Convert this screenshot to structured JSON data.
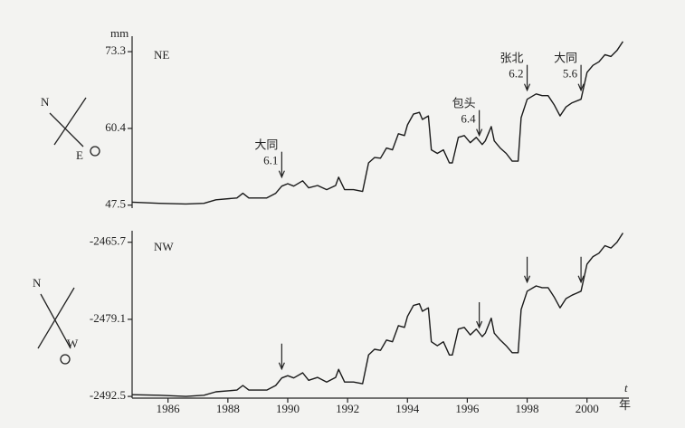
{
  "chart_data": [
    {
      "type": "line",
      "panel_label": "NE",
      "y_unit": "mm",
      "xlim": [
        1984.8,
        2001.4
      ],
      "ylim": [
        47.0,
        75.9
      ],
      "yticks": [
        47.5,
        60.4,
        73.3
      ],
      "color": "#1a1a1a",
      "x": [
        1984.8,
        1985.7,
        1986.6,
        1987.2,
        1987.6,
        1988.3,
        1988.5,
        1988.7,
        1989.3,
        1989.6,
        1989.8,
        1990.0,
        1990.2,
        1990.5,
        1990.7,
        1991.0,
        1991.3,
        1991.6,
        1991.7,
        1991.9,
        1992.2,
        1992.5,
        1992.6,
        1992.7,
        1992.9,
        1993.1,
        1993.3,
        1993.5,
        1993.7,
        1993.9,
        1994.0,
        1994.2,
        1994.4,
        1994.5,
        1994.7,
        1994.8,
        1995.0,
        1995.2,
        1995.4,
        1995.5,
        1995.7,
        1995.9,
        1996.1,
        1996.3,
        1996.5,
        1996.6,
        1996.8,
        1996.9,
        1997.1,
        1997.3,
        1997.5,
        1997.7,
        1997.8,
        1998.0,
        1998.3,
        1998.5,
        1998.7,
        1998.9,
        1999.1,
        1999.3,
        1999.5,
        1999.8,
        2000.0,
        2000.2,
        2000.4,
        2000.6,
        2000.8,
        2001.0,
        2001.2
      ],
      "values": [
        48.0,
        47.8,
        47.7,
        47.8,
        48.4,
        48.7,
        49.5,
        48.7,
        48.7,
        49.5,
        50.7,
        51.1,
        50.7,
        51.6,
        50.4,
        50.8,
        50.1,
        50.8,
        52.2,
        50.1,
        50.1,
        49.8,
        52.2,
        54.6,
        55.5,
        55.4,
        57.1,
        56.8,
        59.5,
        59.2,
        61.0,
        62.8,
        63.1,
        61.9,
        62.5,
        56.8,
        56.2,
        56.8,
        54.6,
        54.6,
        58.9,
        59.2,
        58.0,
        58.9,
        57.7,
        58.3,
        60.7,
        58.3,
        57.1,
        56.2,
        54.9,
        54.9,
        62.2,
        65.3,
        66.2,
        65.9,
        65.9,
        64.4,
        62.5,
        64.0,
        64.7,
        65.3,
        69.8,
        71.0,
        71.6,
        72.8,
        72.5,
        73.5,
        75.0
      ],
      "annotations": [
        {
          "label": "大同",
          "value": 6.1,
          "x": 1989.8
        },
        {
          "label": "包头",
          "value": 6.4,
          "x": 1996.4
        },
        {
          "label": "张北",
          "value": 6.2,
          "x": 1998.0
        },
        {
          "label": "大同",
          "value": 5.6,
          "x": 1999.8
        }
      ],
      "compass": [
        "N",
        "E"
      ]
    },
    {
      "type": "line",
      "panel_label": "NW",
      "xlim": [
        1984.8,
        2001.4
      ],
      "ylim": [
        -2492.8,
        -2463.7
      ],
      "yticks": [
        -2465.7,
        -2479.1,
        -2492.5
      ],
      "color": "#1a1a1a",
      "xticks": [
        1986,
        1988,
        1990,
        1992,
        1994,
        1996,
        1998,
        2000
      ],
      "x_symbol": "t",
      "x_label": "年",
      "x": [
        1984.8,
        1985.7,
        1986.6,
        1987.2,
        1987.6,
        1988.3,
        1988.5,
        1988.7,
        1989.3,
        1989.6,
        1989.8,
        1990.0,
        1990.2,
        1990.5,
        1990.7,
        1991.0,
        1991.3,
        1991.6,
        1991.7,
        1991.9,
        1992.2,
        1992.5,
        1992.6,
        1992.7,
        1992.9,
        1993.1,
        1993.3,
        1993.5,
        1993.7,
        1993.9,
        1994.0,
        1994.2,
        1994.4,
        1994.5,
        1994.7,
        1994.8,
        1995.0,
        1995.2,
        1995.4,
        1995.5,
        1995.7,
        1995.9,
        1996.1,
        1996.3,
        1996.5,
        1996.6,
        1996.8,
        1996.9,
        1997.1,
        1997.3,
        1997.5,
        1997.7,
        1997.8,
        1998.0,
        1998.3,
        1998.5,
        1998.7,
        1998.9,
        1999.1,
        1999.3,
        1999.5,
        1999.8,
        2000.0,
        2000.2,
        2000.4,
        2000.6,
        2000.8,
        2001.0,
        2001.2
      ],
      "values": [
        -2492.2,
        -2492.3,
        -2492.5,
        -2492.3,
        -2491.7,
        -2491.4,
        -2490.6,
        -2491.4,
        -2491.4,
        -2490.6,
        -2489.3,
        -2488.9,
        -2489.3,
        -2488.4,
        -2489.7,
        -2489.2,
        -2490.0,
        -2489.2,
        -2487.8,
        -2490.0,
        -2490.0,
        -2490.3,
        -2487.8,
        -2485.3,
        -2484.3,
        -2484.5,
        -2482.7,
        -2483.0,
        -2480.2,
        -2480.5,
        -2478.6,
        -2476.7,
        -2476.4,
        -2477.7,
        -2477.1,
        -2483.0,
        -2483.7,
        -2483.0,
        -2485.3,
        -2485.3,
        -2480.8,
        -2480.5,
        -2481.8,
        -2480.8,
        -2482.1,
        -2481.5,
        -2478.9,
        -2481.5,
        -2482.7,
        -2483.7,
        -2484.9,
        -2484.9,
        -2477.4,
        -2474.2,
        -2473.3,
        -2473.6,
        -2473.6,
        -2475.2,
        -2477.1,
        -2475.5,
        -2474.9,
        -2474.2,
        -2469.5,
        -2468.2,
        -2467.6,
        -2466.3,
        -2466.7,
        -2465.7,
        -2464.1
      ],
      "event_x": [
        1989.8,
        1996.4,
        1998.0,
        1999.8
      ],
      "compass": [
        "N",
        "W"
      ]
    }
  ]
}
